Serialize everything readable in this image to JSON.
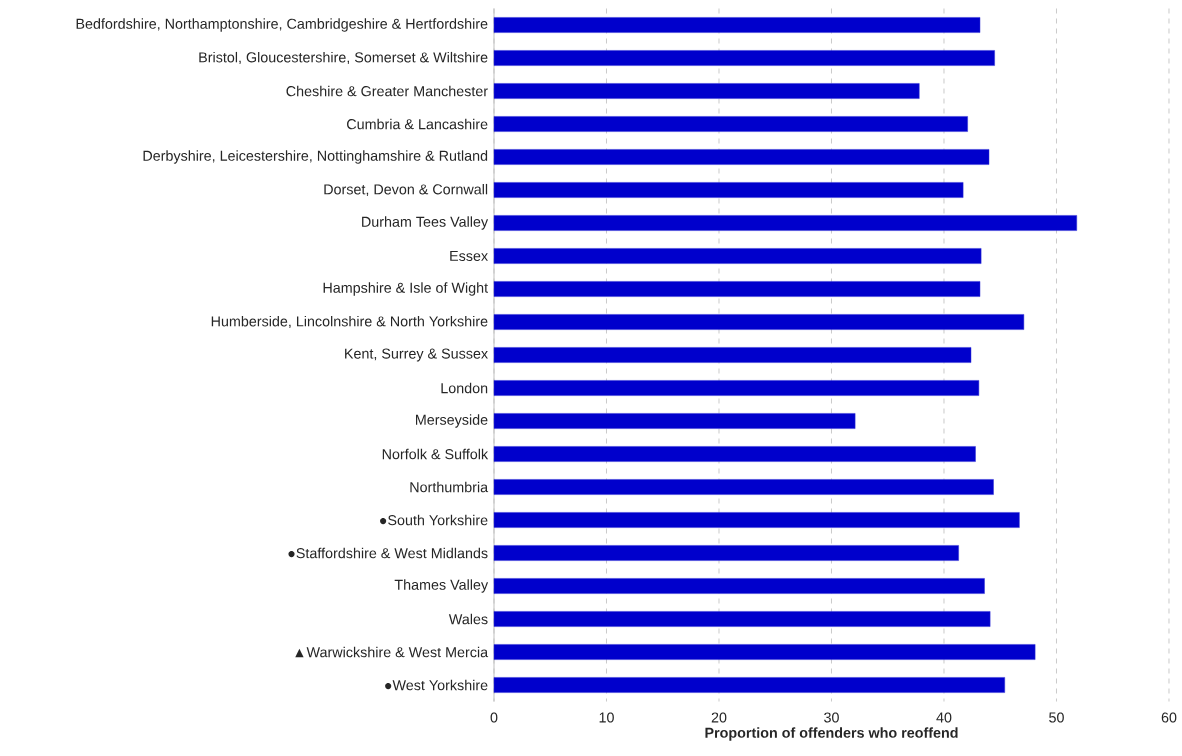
{
  "chart_data": {
    "type": "bar",
    "orientation": "horizontal",
    "xlabel": "Proportion of offenders who reoffend",
    "categories": [
      "Bedfordshire, Northamptonshire, Cambridgeshire & Hertfordshire",
      "Bristol, Gloucestershire, Somerset & Wiltshire",
      "Cheshire & Greater Manchester",
      "Cumbria & Lancashire",
      "Derbyshire, Leicestershire, Nottinghamshire & Rutland",
      "Dorset, Devon & Cornwall",
      "Durham Tees Valley",
      "Essex",
      "Hampshire & Isle of Wight",
      "Humberside, Lincolnshire & North Yorkshire",
      "Kent, Surrey & Sussex",
      "London",
      "Merseyside",
      "Norfolk & Suffolk",
      "Northumbria",
      "●South Yorkshire",
      "●Staffordshire & West Midlands",
      "Thames Valley",
      "Wales",
      "▲Warwickshire & West Mercia",
      "●West Yorkshire"
    ],
    "values": [
      43.2,
      44.5,
      37.8,
      42.1,
      44.0,
      41.7,
      51.8,
      43.3,
      43.2,
      47.1,
      42.4,
      43.1,
      32.1,
      42.8,
      44.4,
      46.7,
      41.3,
      43.6,
      44.1,
      48.1,
      45.4
    ],
    "color": "#0000cc",
    "xlim": [
      0,
      60
    ],
    "xticks": [
      0,
      10,
      20,
      30,
      40,
      50,
      60
    ],
    "grid": "x"
  }
}
